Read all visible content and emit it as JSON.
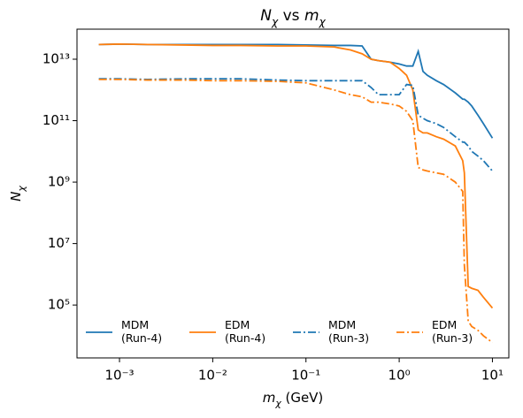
{
  "chart_data": {
    "type": "line",
    "title": "Nχ vs mχ",
    "xlabel": "mχ (GeV)",
    "ylabel": "Nχ",
    "xscale": "log",
    "yscale": "log",
    "x": [
      0.0006,
      0.001,
      0.002,
      0.005,
      0.01,
      0.02,
      0.05,
      0.1,
      0.2,
      0.3,
      0.4,
      0.5,
      0.6,
      0.8,
      1.0,
      1.2,
      1.4,
      1.6,
      1.8,
      2,
      2.5,
      3,
      4,
      4.8,
      5,
      5.5,
      6,
      7,
      8,
      10
    ],
    "series": [
      {
        "name": "MDM\n(Run-4)",
        "color": "#1f77b4",
        "linestyle": "solid",
        "values": [
          30000000000000.0,
          31000000000000.0,
          30000000000000.0,
          30000000000000.0,
          30000000000000.0,
          30000000000000.0,
          30000000000000.0,
          29000000000000.0,
          28000000000000.0,
          28000000000000.0,
          27000000000000.0,
          10000000000000.0,
          9000000000000.0,
          8000000000000.0,
          7000000000000.0,
          6000000000000.0,
          6000000000000.0,
          18000000000000.0,
          4000000000000.0,
          3000000000000.0,
          2000000000000.0,
          1500000000000.0,
          800000000000.0,
          500000000000.0,
          500000000000.0,
          400000000000.0,
          300000000000.0,
          150000000000.0,
          80000000000.0,
          27000000000.0
        ]
      },
      {
        "name": "EDM\n(Run-4)",
        "color": "#ff7f0e",
        "linestyle": "solid",
        "values": [
          30000000000000.0,
          31000000000000.0,
          30000000000000.0,
          29000000000000.0,
          28000000000000.0,
          28000000000000.0,
          27000000000000.0,
          27000000000000.0,
          25000000000000.0,
          20000000000000.0,
          15000000000000.0,
          10000000000000.0,
          9000000000000.0,
          8000000000000.0,
          5000000000000.0,
          3000000000000.0,
          1000000000000.0,
          50000000000.0,
          40000000000.0,
          40000000000.0,
          30000000000.0,
          25000000000.0,
          15000000000.0,
          5000000000.0,
          2000000000.0,
          400000.0,
          350000.0,
          300000.0,
          180000.0,
          80000.0
        ]
      },
      {
        "name": "MDM\n(Run-3)",
        "color": "#1f77b4",
        "linestyle": "dashdot",
        "values": [
          2300000000000.0,
          2300000000000.0,
          2200000000000.0,
          2300000000000.0,
          2300000000000.0,
          2300000000000.0,
          2100000000000.0,
          2000000000000.0,
          2000000000000.0,
          2000000000000.0,
          2000000000000.0,
          1200000000000.0,
          700000000000.0,
          700000000000.0,
          700000000000.0,
          1500000000000.0,
          1400000000000.0,
          150000000000.0,
          120000000000.0,
          100000000000.0,
          80000000000.0,
          60000000000.0,
          30000000000.0,
          20000000000.0,
          20000000000.0,
          15000000000.0,
          10000000000.0,
          7000000000.0,
          5000000000.0,
          2300000000.0
        ]
      },
      {
        "name": "EDM\n(Run-3)",
        "color": "#ff7f0e",
        "linestyle": "dashdot",
        "values": [
          2200000000000.0,
          2200000000000.0,
          2100000000000.0,
          2100000000000.0,
          2000000000000.0,
          2000000000000.0,
          1900000000000.0,
          1700000000000.0,
          1000000000000.0,
          700000000000.0,
          600000000000.0,
          400000000000.0,
          400000000000.0,
          350000000000.0,
          300000000000.0,
          200000000000.0,
          100000000000.0,
          3000000000.0,
          2500000000.0,
          2300000000.0,
          2000000000.0,
          1800000000.0,
          1000000000.0,
          500000000.0,
          2000000.0,
          30000.0,
          20000.0,
          15000.0,
          10000.0,
          6000.0
        ]
      }
    ],
    "xlim": [
      0.00035,
      15
    ],
    "ylim": [
      1900,
      95000000000000.0
    ],
    "xticks": [
      {
        "value": 0.001,
        "label": "10⁻³"
      },
      {
        "value": 0.01,
        "label": "10⁻²"
      },
      {
        "value": 0.1,
        "label": "10⁻¹"
      },
      {
        "value": 1,
        "label": "10⁰"
      },
      {
        "value": 10,
        "label": "10¹"
      }
    ],
    "yticks": [
      {
        "value": 100000,
        "label": "10⁵"
      },
      {
        "value": 10000000,
        "label": "10⁷"
      },
      {
        "value": 1000000000,
        "label": "10⁹"
      },
      {
        "value": 100000000000,
        "label": "10¹¹"
      },
      {
        "value": 10000000000000,
        "label": "10¹³"
      }
    ],
    "legend": "lower center",
    "legend_columns": 4
  }
}
